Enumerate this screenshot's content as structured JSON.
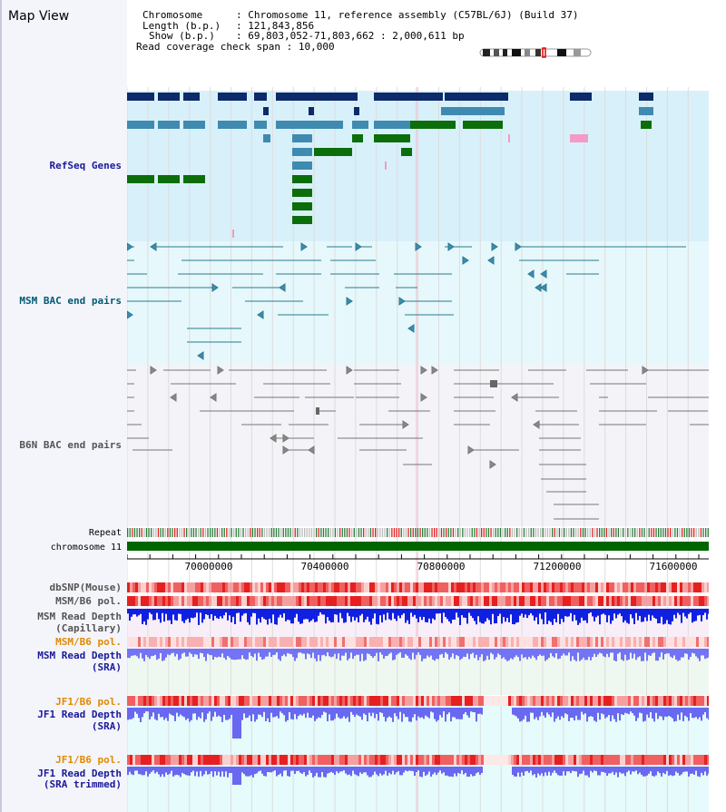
{
  "view": {
    "title": "Map View"
  },
  "header": {
    "chromosome_key": "Chromosome",
    "chromosome_value": "Chromosome 11, reference assembly (C57BL/6J) (Build 37)",
    "length_key": "Length (b.p.)",
    "length_value": "121,843,856",
    "show_key": "Show (b.p.)",
    "show_value": "69,803,052-71,803,662 : 2,000,611 bp",
    "coverage_key": "Read coverage check span",
    "coverage_value": "10,000"
  },
  "tracks": {
    "refseq": "RefSeq Genes",
    "msm_bac": "MSM BAC end pairs",
    "b6n_bac": "B6N BAC end pairs",
    "repeat": "Repeat",
    "chromosome": "chromosome 11",
    "dbsnp": "dbSNP(Mouse)",
    "msm_pol": "MSM/B6 pol.",
    "msm_depth_cap_1": "MSM Read Depth",
    "msm_depth_cap_2": "(Capillary)",
    "msm_pol_2": "MSM/B6 pol.",
    "msm_depth_sra_1": "MSM Read Depth",
    "msm_depth_sra_2": "(SRA)",
    "jf1_pol": "JF1/B6 pol.",
    "jf1_depth_sra_1": "JF1 Read Depth",
    "jf1_depth_sra_2": "(SRA)",
    "jf1_pol_2": "JF1/B6 pol.",
    "jf1_depth_trim_1": "JF1 Read Depth",
    "jf1_depth_trim_2": "(SRA trimmed)"
  },
  "axis": {
    "ticks": [
      "70000000",
      "70400000",
      "70800000",
      "71200000",
      "71600000"
    ]
  },
  "colors": {
    "refseq_bg": "#d8f0fa",
    "bac_bg": "#e6f8fb",
    "b6n_bg": "#f3f3f8",
    "gene_dark": "#0d2a6b",
    "gene_mid": "#3f8ab0",
    "gene_green": "#0b6e0b",
    "gene_pink": "#f59ac8",
    "msm_label": "#005a73",
    "depth_blue": "#1020e0",
    "depth_light": "#7373f5",
    "orange": "#e08a00",
    "navy": "#1a1a9a"
  }
}
